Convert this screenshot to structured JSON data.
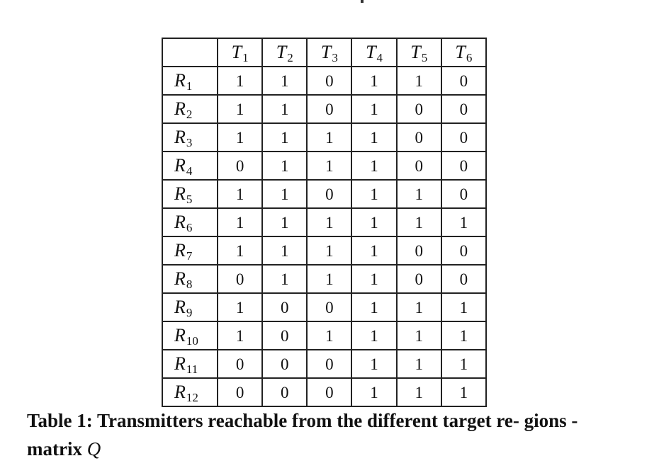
{
  "table": {
    "columns": [
      {
        "symbol": "T",
        "sub": "1"
      },
      {
        "symbol": "T",
        "sub": "2"
      },
      {
        "symbol": "T",
        "sub": "3"
      },
      {
        "symbol": "T",
        "sub": "4"
      },
      {
        "symbol": "T",
        "sub": "5"
      },
      {
        "symbol": "T",
        "sub": "6"
      }
    ],
    "rows": [
      {
        "symbol": "R",
        "sub": "1",
        "values": [
          "1",
          "1",
          "0",
          "1",
          "1",
          "0"
        ]
      },
      {
        "symbol": "R",
        "sub": "2",
        "values": [
          "1",
          "1",
          "0",
          "1",
          "0",
          "0"
        ]
      },
      {
        "symbol": "R",
        "sub": "3",
        "values": [
          "1",
          "1",
          "1",
          "1",
          "0",
          "0"
        ]
      },
      {
        "symbol": "R",
        "sub": "4",
        "values": [
          "0",
          "1",
          "1",
          "1",
          "0",
          "0"
        ]
      },
      {
        "symbol": "R",
        "sub": "5",
        "values": [
          "1",
          "1",
          "0",
          "1",
          "1",
          "0"
        ]
      },
      {
        "symbol": "R",
        "sub": "6",
        "values": [
          "1",
          "1",
          "1",
          "1",
          "1",
          "1"
        ]
      },
      {
        "symbol": "R",
        "sub": "7",
        "values": [
          "1",
          "1",
          "1",
          "1",
          "0",
          "0"
        ]
      },
      {
        "symbol": "R",
        "sub": "8",
        "values": [
          "0",
          "1",
          "1",
          "1",
          "0",
          "0"
        ]
      },
      {
        "symbol": "R",
        "sub": "9",
        "values": [
          "1",
          "0",
          "0",
          "1",
          "1",
          "1"
        ]
      },
      {
        "symbol": "R",
        "sub": "10",
        "values": [
          "1",
          "0",
          "1",
          "1",
          "1",
          "1"
        ]
      },
      {
        "symbol": "R",
        "sub": "11",
        "values": [
          "0",
          "0",
          "0",
          "1",
          "1",
          "1"
        ]
      },
      {
        "symbol": "R",
        "sub": "12",
        "values": [
          "0",
          "0",
          "0",
          "1",
          "1",
          "1"
        ]
      }
    ]
  },
  "caption": {
    "text": "Table 1: Transmitters reachable from the different target re- gions - matrix",
    "math_symbol": "Q"
  }
}
